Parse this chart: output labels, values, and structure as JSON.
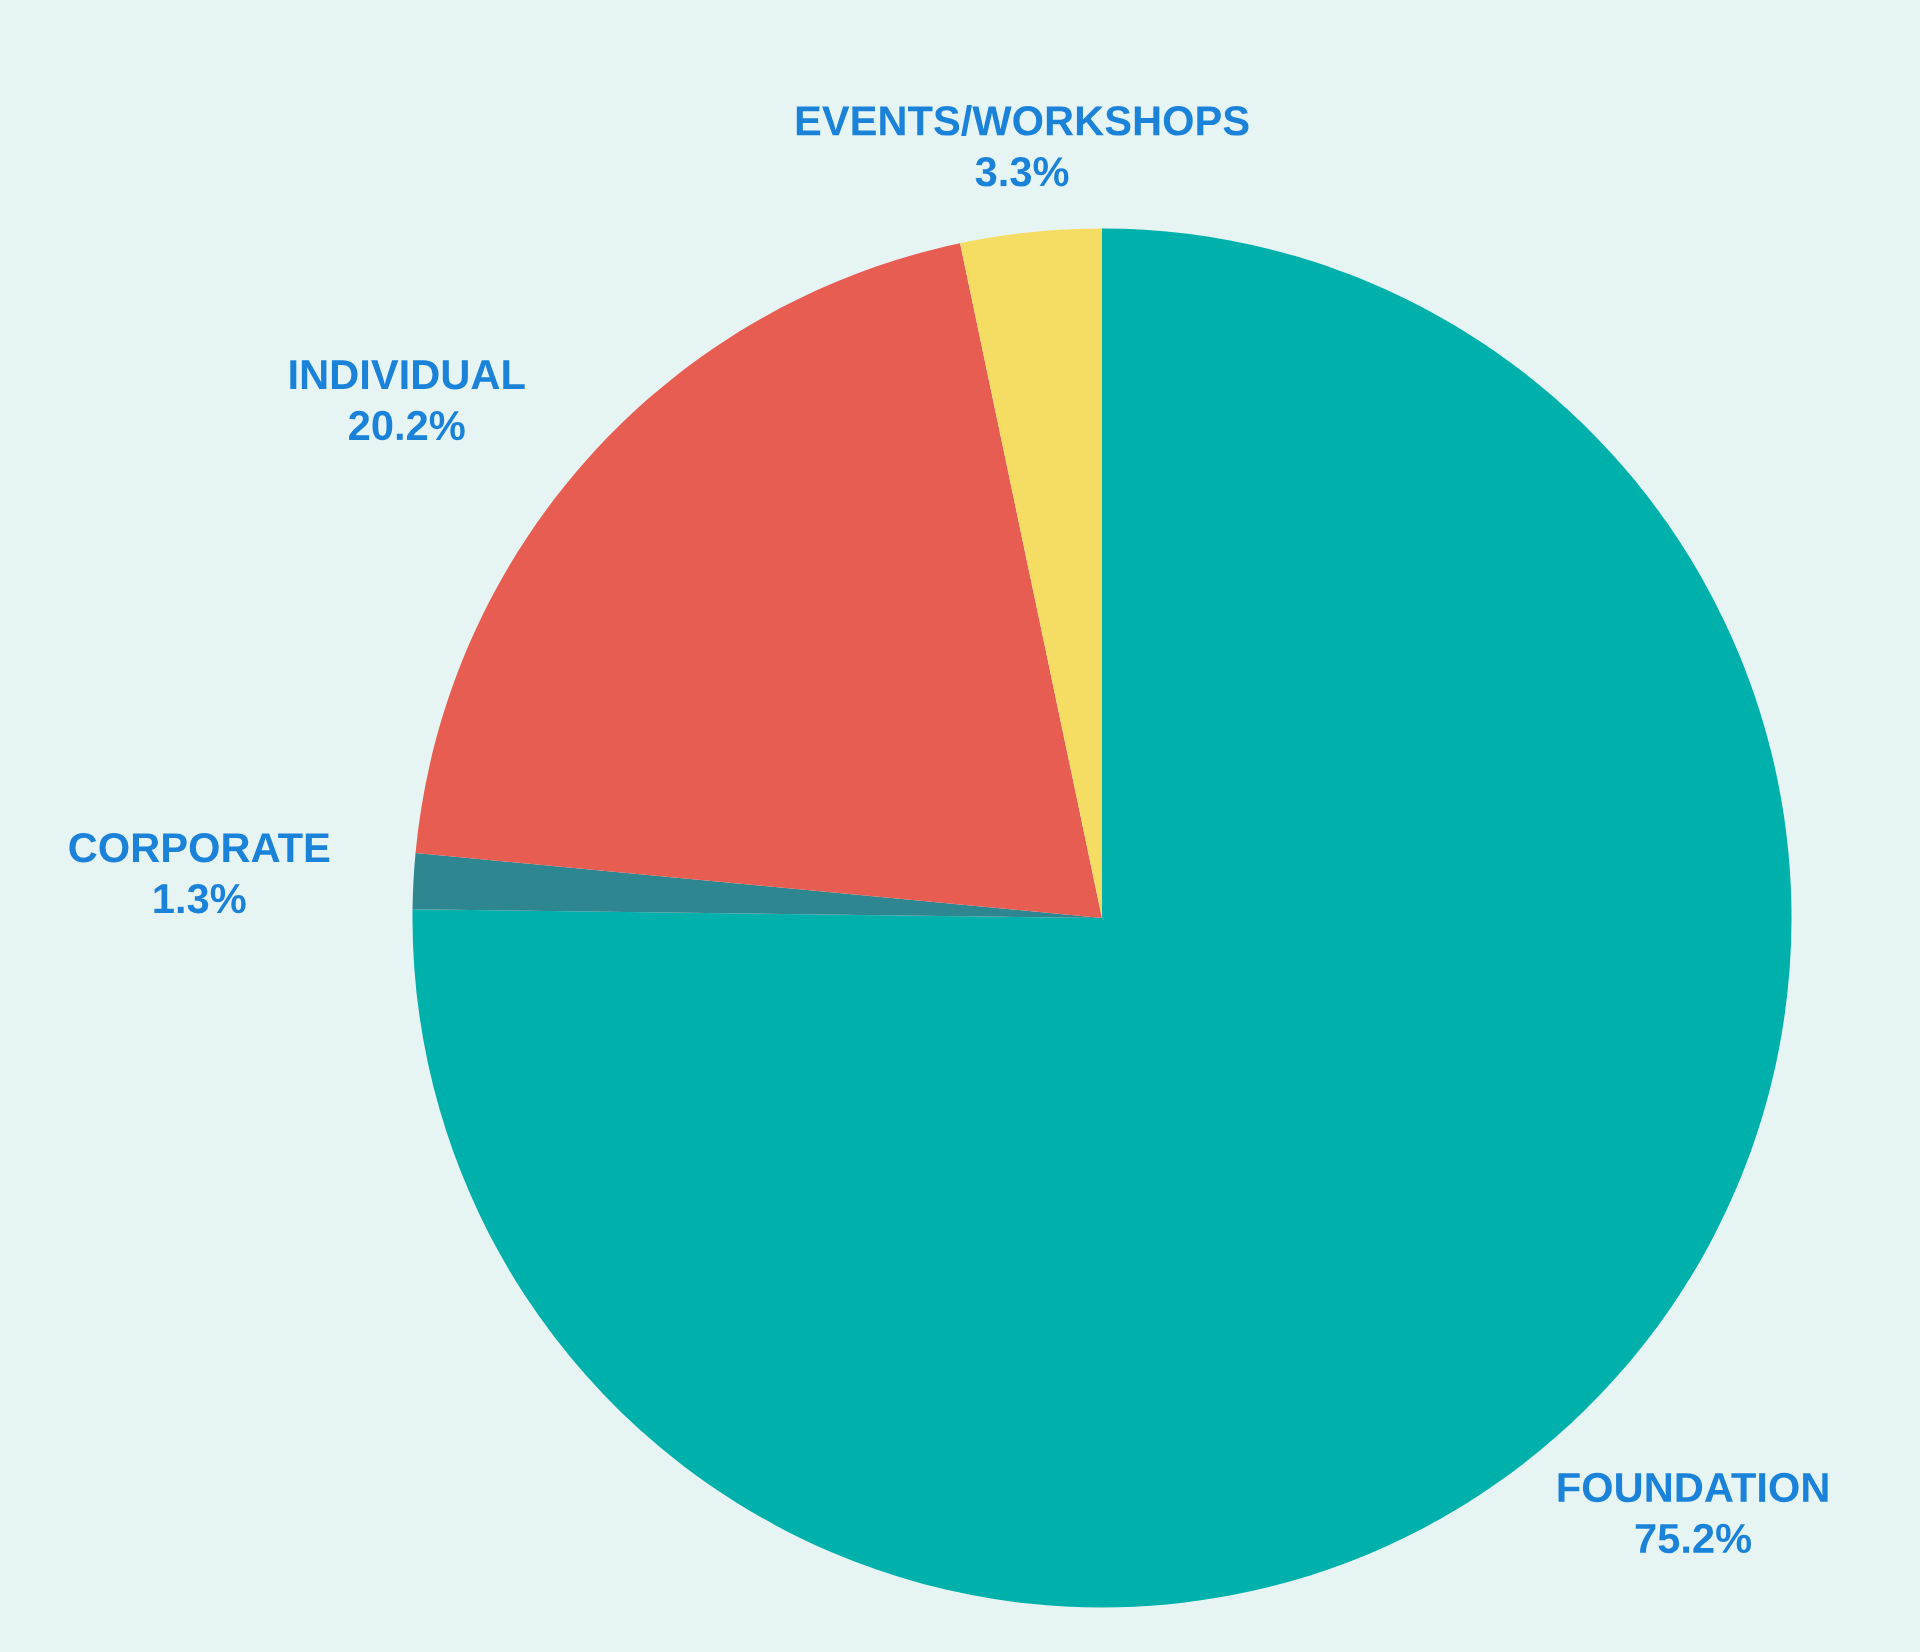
{
  "chart_data": {
    "type": "pie",
    "categories": [
      "FOUNDATION",
      "CORPORATE",
      "INDIVIDUAL",
      "EVENTS/WORKSHOPS"
    ],
    "values": [
      75.2,
      1.3,
      20.2,
      3.3
    ],
    "value_labels": [
      "75.2%",
      "1.3%",
      "20.2%",
      "3.3%"
    ],
    "colors": [
      "#00b0aa",
      "#2e8690",
      "#e85d52",
      "#f5dc62"
    ]
  }
}
